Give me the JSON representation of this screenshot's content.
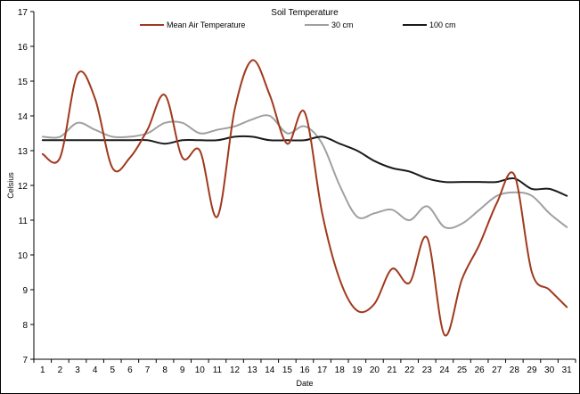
{
  "chart_data": {
    "type": "line",
    "title": "Soil Temperature",
    "xlabel": "Date",
    "ylabel": "Celsius",
    "x": [
      1,
      2,
      3,
      4,
      5,
      6,
      7,
      8,
      9,
      10,
      11,
      12,
      13,
      14,
      15,
      16,
      17,
      18,
      19,
      20,
      21,
      22,
      23,
      24,
      25,
      26,
      27,
      28,
      29,
      30,
      31
    ],
    "xlim": [
      1,
      31
    ],
    "ylim": [
      7,
      17
    ],
    "yticks": [
      "7",
      "8",
      "9",
      "10",
      "11",
      "12",
      "13",
      "14",
      "15",
      "16",
      "17"
    ],
    "xticks": [
      "1",
      "2",
      "3",
      "4",
      "5",
      "6",
      "7",
      "8",
      "9",
      "10",
      "11",
      "12",
      "13",
      "14",
      "15",
      "16",
      "17",
      "18",
      "19",
      "20",
      "21",
      "22",
      "23",
      "24",
      "25",
      "26",
      "27",
      "28",
      "29",
      "30",
      "31"
    ],
    "grid": false,
    "legend_position": "top",
    "series": [
      {
        "name": "Mean Air Temperature",
        "color": "#a0391d",
        "values": [
          12.9,
          12.8,
          15.2,
          14.5,
          12.5,
          12.8,
          13.6,
          14.6,
          12.8,
          13.0,
          11.1,
          14.2,
          15.6,
          14.6,
          13.2,
          14.1,
          11.2,
          9.3,
          8.4,
          8.6,
          9.6,
          9.2,
          10.5,
          7.7,
          9.3,
          10.3,
          11.5,
          12.3,
          9.5,
          9.0,
          8.5
        ]
      },
      {
        "name": "30 cm",
        "color": "#a0a0a0",
        "values": [
          13.4,
          13.4,
          13.8,
          13.6,
          13.4,
          13.4,
          13.5,
          13.8,
          13.8,
          13.5,
          13.6,
          13.7,
          13.9,
          14.0,
          13.5,
          13.7,
          13.2,
          12.0,
          11.1,
          11.2,
          11.3,
          11.0,
          11.4,
          10.8,
          10.9,
          11.3,
          11.7,
          11.8,
          11.7,
          11.2,
          10.8
        ]
      },
      {
        "name": "100 cm",
        "color": "#1a1a1a",
        "values": [
          13.3,
          13.3,
          13.3,
          13.3,
          13.3,
          13.3,
          13.3,
          13.2,
          13.3,
          13.3,
          13.3,
          13.4,
          13.4,
          13.3,
          13.3,
          13.3,
          13.4,
          13.2,
          13.0,
          12.7,
          12.5,
          12.4,
          12.2,
          12.1,
          12.1,
          12.1,
          12.1,
          12.2,
          11.9,
          11.9,
          11.7
        ]
      }
    ]
  }
}
